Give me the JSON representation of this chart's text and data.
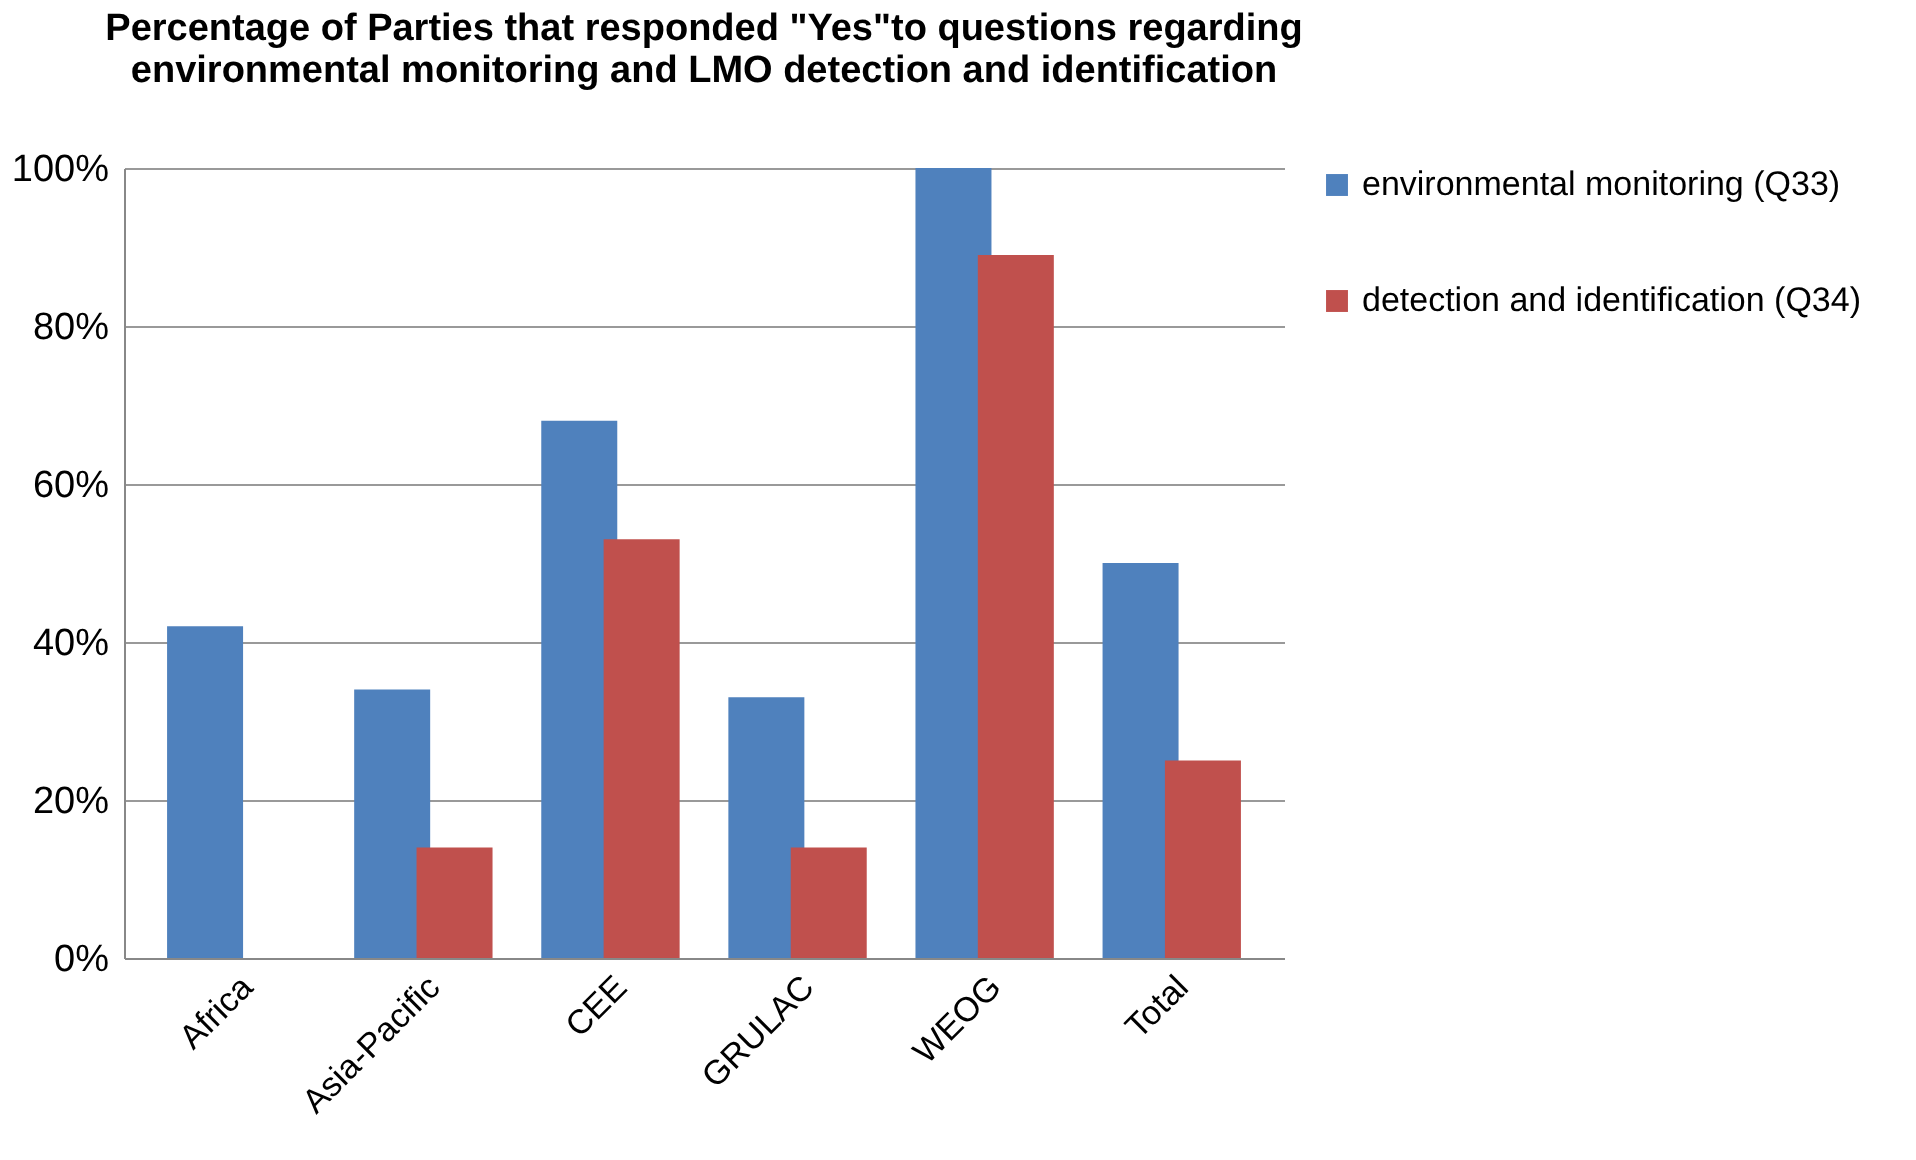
{
  "chart_data": {
    "type": "bar",
    "title": "Percentage of Parties that responded \"Yes\"to questions regarding\nenvironmental monitoring and LMO detection and identification",
    "categories": [
      "Africa",
      "Asia-Pacific",
      "CEE",
      "GRULAC",
      "WEOG",
      "Total"
    ],
    "series": [
      {
        "name": "environmental monitoring (Q33)",
        "color": "#4f81bd",
        "values": [
          42,
          34,
          68,
          33,
          100,
          50
        ]
      },
      {
        "name": "detection and identification (Q34)",
        "color": "#c0504d",
        "values": [
          0,
          14,
          53,
          14,
          89,
          25
        ]
      }
    ],
    "ylim": [
      0,
      100
    ],
    "yticks": [
      {
        "value": 0,
        "label": "0%"
      },
      {
        "value": 20,
        "label": "20%"
      },
      {
        "value": 40,
        "label": "40%"
      },
      {
        "value": 60,
        "label": "60%"
      },
      {
        "value": 80,
        "label": "80%"
      },
      {
        "value": 100,
        "label": "100%"
      }
    ],
    "grid": "y",
    "legend": "right"
  }
}
